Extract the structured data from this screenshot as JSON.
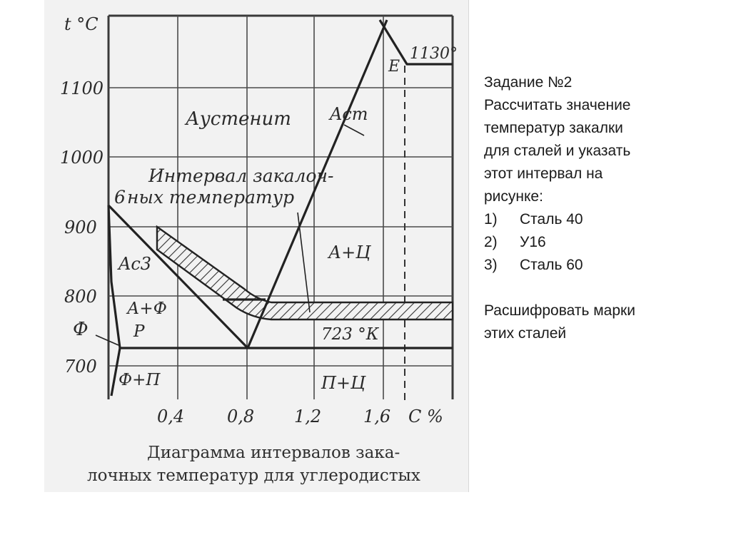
{
  "diagram": {
    "axis": {
      "y_unit": "t °C",
      "x_unit": "C %",
      "y_ticks": [
        "1100",
        "1000",
        "900",
        "800",
        "700"
      ],
      "x_ticks": [
        "0,4",
        "0,8",
        "1,2",
        "1,6"
      ]
    },
    "labels": {
      "austenite": "Аустенит",
      "acm": "Acm",
      "ac3": "Ac3",
      "interval_line1": "Интервал закалоч-",
      "interval_line2": "ных температур",
      "a_c": "А+Ц",
      "a_f": "А+Ф",
      "p": "Р",
      "f": "Ф",
      "f_p": "Ф+П",
      "p_c": "П+Ц",
      "k723": "723 °К",
      "e_point": "E",
      "t1130": "1130°",
      "six": "6"
    },
    "caption": {
      "line1": "Диаграмма интервалов зака-",
      "line2": "лочных температур для углеродистых"
    }
  },
  "task": {
    "title": "Задание №2",
    "text_lines": [
      "Рассчитать значение",
      "температур закалки",
      "для сталей и указать",
      "этот интервал на",
      "рисунке:"
    ],
    "items": [
      {
        "num": "1)",
        "label": "Сталь 40"
      },
      {
        "num": "2)",
        "label": "У16"
      },
      {
        "num": "3)",
        "label": "Сталь 60"
      }
    ],
    "footer_lines": [
      "Расшифровать марки",
      "этих сталей"
    ]
  }
}
